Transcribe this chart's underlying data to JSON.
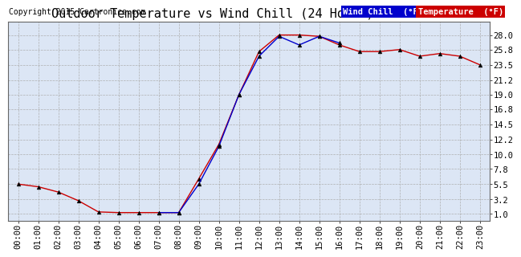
{
  "title": "Outdoor Temperature vs Wind Chill (24 Hours)  20150306",
  "copyright": "Copyright 2015 Cartronics.com",
  "background_color": "#ffffff",
  "plot_bg_color": "#dce6f5",
  "hours": [
    "00:00",
    "01:00",
    "02:00",
    "03:00",
    "04:00",
    "05:00",
    "06:00",
    "07:00",
    "08:00",
    "09:00",
    "10:00",
    "11:00",
    "12:00",
    "13:00",
    "14:00",
    "15:00",
    "16:00",
    "17:00",
    "18:00",
    "19:00",
    "20:00",
    "21:00",
    "22:00",
    "23:00"
  ],
  "temperature": [
    5.5,
    5.1,
    4.3,
    3.0,
    1.3,
    1.2,
    1.2,
    1.2,
    1.2,
    6.3,
    11.5,
    19.0,
    25.5,
    28.0,
    28.0,
    27.8,
    26.5,
    25.5,
    25.5,
    25.8,
    24.8,
    25.2,
    24.8,
    23.5
  ],
  "wind_chill": [
    null,
    null,
    null,
    null,
    null,
    null,
    null,
    1.2,
    1.2,
    5.5,
    11.2,
    19.0,
    24.8,
    27.8,
    26.5,
    27.8,
    26.8,
    null,
    null,
    null,
    null,
    null,
    null,
    null
  ],
  "temp_color": "#cc0000",
  "wind_color": "#0000cc",
  "ylim_min": 0,
  "ylim_max": 30,
  "yticks": [
    1.0,
    3.2,
    5.5,
    7.8,
    10.0,
    12.2,
    14.5,
    16.8,
    19.0,
    21.2,
    23.5,
    25.8,
    28.0
  ],
  "ytick_labels": [
    "1.0",
    "3.2",
    "5.5",
    "7.8",
    "10.0",
    "12.2",
    "14.5",
    "16.8",
    "19.0",
    "21.2",
    "23.5",
    "25.8",
    "28.0"
  ],
  "grid_color": "#aaaaaa",
  "title_fontsize": 11,
  "axis_fontsize": 7.5,
  "marker_size": 3.5,
  "legend_wind_bg": "#0000cc",
  "legend_temp_bg": "#cc0000",
  "legend_text_color": "#ffffff",
  "copyright_fontsize": 7,
  "legend_fontsize": 7.5
}
